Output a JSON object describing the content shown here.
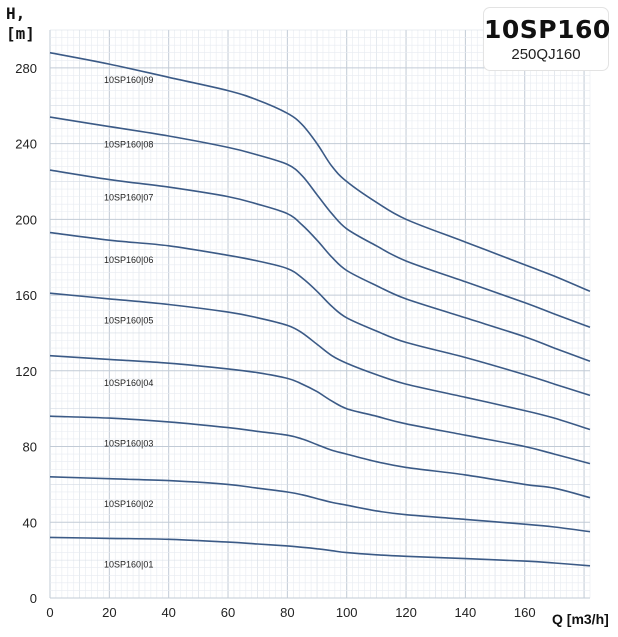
{
  "badge": {
    "model": "10SP160",
    "alt_model": "250QJ160"
  },
  "chart_data": {
    "type": "line",
    "title": "",
    "xlabel": "Q [m3/h]",
    "ylabel_line1": "H,",
    "ylabel_line2": "[m]",
    "xlim": [
      0,
      182
    ],
    "ylim": [
      0,
      300
    ],
    "x_ticks": [
      0,
      20,
      40,
      60,
      80,
      100,
      120,
      140,
      160
    ],
    "y_ticks": [
      0,
      40,
      80,
      120,
      160,
      200,
      240,
      280
    ],
    "grid": true,
    "line_color": "#3b5a86",
    "x": [
      0,
      20,
      40,
      60,
      70,
      80,
      85,
      90,
      95,
      100,
      110,
      120,
      140,
      160,
      170,
      182
    ],
    "series": [
      {
        "name": "10SP160|01",
        "values": [
          32,
          31.5,
          31,
          29.5,
          28.5,
          27.5,
          26.8,
          26,
          25,
          24,
          22.8,
          22,
          20.8,
          19.5,
          18.5,
          17
        ]
      },
      {
        "name": "10SP160|02",
        "values": [
          64,
          63,
          62,
          60,
          58,
          56,
          54.5,
          52.5,
          50.5,
          49,
          46,
          44,
          41.5,
          39,
          37.5,
          35
        ]
      },
      {
        "name": "10SP160|03",
        "values": [
          96,
          95,
          93,
          90,
          88,
          86,
          84,
          81,
          78,
          76,
          72,
          69,
          65,
          60,
          58,
          53
        ]
      },
      {
        "name": "10SP160|04",
        "values": [
          128,
          126,
          124,
          121,
          119,
          116,
          113,
          109,
          104,
          100,
          96,
          92,
          86,
          80,
          76,
          71
        ]
      },
      {
        "name": "10SP160|05",
        "values": [
          161,
          158,
          155,
          151,
          148,
          144,
          140,
          134,
          128,
          124,
          118,
          113,
          106,
          99,
          95,
          89
        ]
      },
      {
        "name": "10SP160|06",
        "values": [
          193,
          189,
          186,
          181,
          178,
          174,
          169,
          162,
          154,
          148,
          141,
          135,
          127,
          118,
          113,
          107
        ]
      },
      {
        "name": "10SP160|07",
        "values": [
          226,
          221,
          217,
          212,
          208,
          203,
          197,
          189,
          180,
          173,
          165,
          158,
          148,
          138,
          132,
          125
        ]
      },
      {
        "name": "10SP160|08",
        "values": [
          254,
          249,
          244,
          238,
          234,
          229,
          223,
          213,
          203,
          195,
          186,
          178,
          167,
          156,
          150,
          143
        ]
      },
      {
        "name": "10SP160|09",
        "values": [
          288,
          282,
          275,
          268,
          263,
          256,
          250,
          240,
          228,
          220,
          209,
          200,
          188,
          176,
          170,
          162
        ]
      }
    ]
  }
}
